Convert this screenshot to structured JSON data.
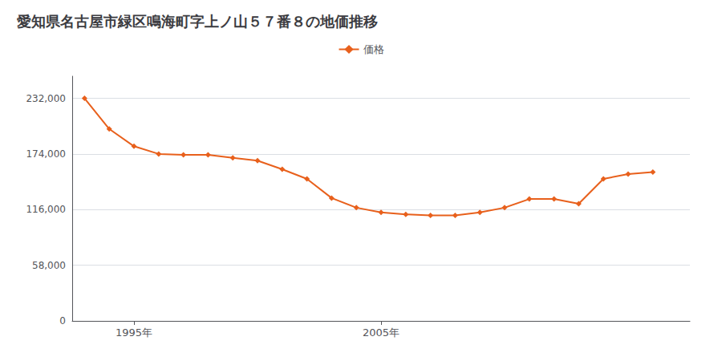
{
  "chart_data": {
    "type": "line",
    "title": "愛知県名古屋市緑区鳴海町字上ノ山５７番８の地価推移",
    "x": [
      1993,
      1994,
      1995,
      1996,
      1997,
      1998,
      1999,
      2000,
      2001,
      2002,
      2003,
      2004,
      2005,
      2006,
      2007,
      2008,
      2009,
      2010,
      2011,
      2012,
      2013,
      2014,
      2015,
      2016
    ],
    "series": [
      {
        "name": "価格",
        "color": "#E8601C",
        "marker": "diamond",
        "values": [
          232000,
          200000,
          182000,
          174000,
          173000,
          173000,
          170000,
          167000,
          158000,
          148000,
          128000,
          118000,
          113000,
          111000,
          110000,
          110000,
          113000,
          118000,
          127000,
          127000,
          122000,
          148000,
          153000,
          155000
        ]
      }
    ],
    "xlim": [
      1992.5,
      2017.5
    ],
    "xticks": [
      {
        "value": 1995,
        "label": "1995年"
      },
      {
        "value": 2005,
        "label": "2005年"
      }
    ],
    "ylim": [
      0,
      255000
    ],
    "yticks": [
      0,
      {
        "value": 58000,
        "label": "58,000"
      },
      {
        "value": 116000,
        "label": "116,000"
      },
      {
        "value": 174000,
        "label": "174,000"
      },
      {
        "value": 232000,
        "label": "232,000"
      }
    ],
    "grid": true,
    "legend": "top"
  }
}
